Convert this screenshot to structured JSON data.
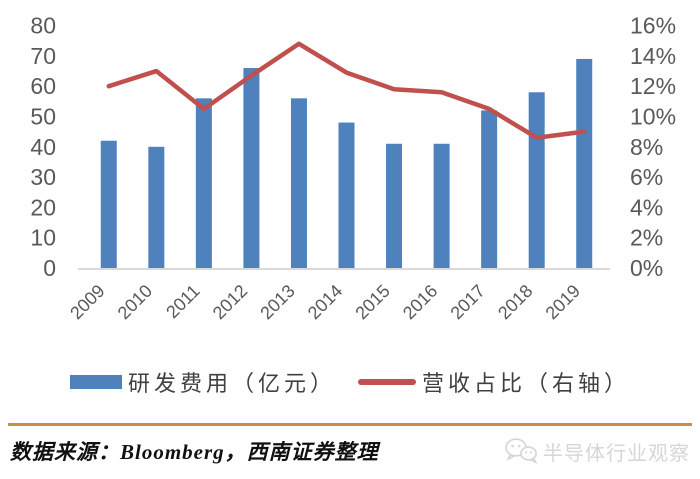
{
  "chart_data": {
    "type": "combo",
    "title": "",
    "categories": [
      "2009",
      "2010",
      "2011",
      "2012",
      "2013",
      "2014",
      "2015",
      "2016",
      "2017",
      "2018",
      "2019"
    ],
    "series": [
      {
        "name": "研发费用（亿元）",
        "type": "bar",
        "axis": "left",
        "color": "#4F81BD",
        "values": [
          42,
          40,
          56,
          66,
          56,
          48,
          41,
          41,
          52,
          58,
          69
        ]
      },
      {
        "name": "营收占比（右轴）",
        "type": "line",
        "axis": "right",
        "color": "#C0504D",
        "values": [
          12.0,
          13.0,
          10.5,
          12.7,
          14.8,
          12.9,
          11.8,
          11.6,
          10.5,
          8.6,
          9.0
        ]
      }
    ],
    "left_axis": {
      "min": 0,
      "max": 80,
      "ticks": [
        "80",
        "70",
        "60",
        "50",
        "40",
        "30",
        "20",
        "10",
        "0"
      ]
    },
    "right_axis": {
      "min": 0,
      "max": 16,
      "ticks": [
        "16%",
        "14%",
        "12%",
        "10%",
        "8%",
        "6%",
        "4%",
        "2%",
        "0%"
      ]
    },
    "grid": false,
    "legend_position": "bottom",
    "axis_text_color": "#595959",
    "axis_line_color": "#D9D9D9"
  },
  "footer": {
    "source_text": "数据来源：Bloomberg，西南证券整理",
    "divider_color": "#C8913D"
  },
  "watermark": {
    "text": "半导体行业观察",
    "icon": "wechat-icon",
    "color": "#D6D6D6"
  }
}
